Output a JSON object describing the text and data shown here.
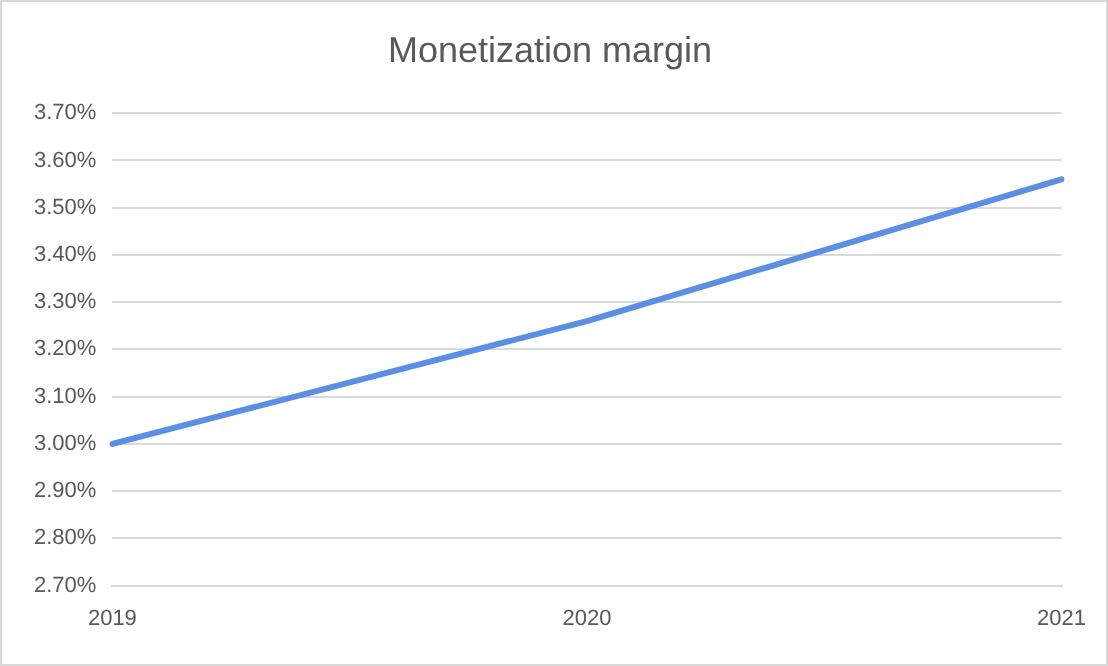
{
  "chart_data": {
    "type": "line",
    "title": "Monetization margin",
    "categories": [
      "2019",
      "2020",
      "2021"
    ],
    "series": [
      {
        "color": "#5b8fe3",
        "values": [
          3.0,
          3.26,
          3.56
        ]
      }
    ],
    "ylim": [
      2.7,
      3.7
    ],
    "yticks": [
      {
        "value": 2.7,
        "label": "2.70%"
      },
      {
        "value": 2.8,
        "label": "2.80%"
      },
      {
        "value": 2.9,
        "label": "2.90%"
      },
      {
        "value": 3.0,
        "label": "3.00%"
      },
      {
        "value": 3.1,
        "label": "3.10%"
      },
      {
        "value": 3.2,
        "label": "3.20%"
      },
      {
        "value": 3.3,
        "label": "3.30%"
      },
      {
        "value": 3.4,
        "label": "3.40%"
      },
      {
        "value": 3.5,
        "label": "3.50%"
      },
      {
        "value": 3.6,
        "label": "3.60%"
      },
      {
        "value": 3.7,
        "label": "3.70%"
      }
    ],
    "grid": "y",
    "legend": false,
    "marker": "none",
    "line_style": "solid"
  }
}
